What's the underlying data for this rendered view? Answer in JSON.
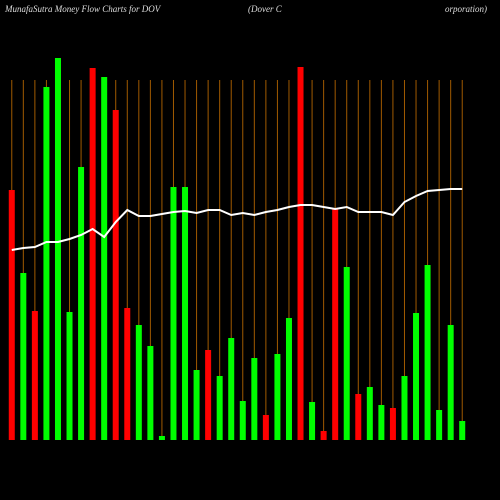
{
  "chart_data": {
    "type": "bar",
    "title": "MunafaSutra  Money Flow  Charts for DOV",
    "subtitle_left": "(Dover C",
    "subtitle_right": "orporation)",
    "categories": [
      null,
      null,
      null,
      null,
      null,
      null,
      null,
      null,
      null,
      null,
      null,
      null,
      null,
      null,
      null,
      null,
      null,
      null,
      null,
      null,
      null,
      null,
      null,
      null,
      null,
      null,
      null,
      null,
      null,
      null,
      null,
      null,
      null,
      null,
      null,
      null,
      null,
      null,
      null,
      null
    ],
    "values": [
      250,
      167,
      129,
      353,
      382,
      128,
      273,
      372,
      363,
      330,
      132,
      115,
      94,
      4,
      253,
      253,
      70,
      90,
      64,
      102,
      39,
      82,
      25,
      86,
      122,
      373,
      38,
      9,
      232,
      173,
      46,
      53,
      35,
      32,
      64,
      127,
      175,
      30,
      115,
      19
    ],
    "colors": [
      "#ff0000",
      "#00ff00",
      "#ff0000",
      "#00ff00",
      "#00ff00",
      "#00ff00",
      "#00ff00",
      "#ff0000",
      "#00ff00",
      "#ff0000",
      "#ff0000",
      "#00ff00",
      "#00ff00",
      "#00ff00",
      "#00ff00",
      "#00ff00",
      "#00ff00",
      "#ff0000",
      "#00ff00",
      "#00ff00",
      "#00ff00",
      "#00ff00",
      "#ff0000",
      "#00ff00",
      "#00ff00",
      "#ff0000",
      "#00ff00",
      "#ff0000",
      "#ff0000",
      "#00ff00",
      "#ff0000",
      "#00ff00",
      "#00ff00",
      "#ff0000",
      "#00ff00",
      "#00ff00",
      "#00ff00",
      "#00ff00",
      "#00ff00",
      "#00ff00"
    ],
    "line_values": [
      190,
      192,
      193,
      198,
      198,
      201,
      205,
      211,
      203,
      218,
      230,
      224,
      224,
      226,
      228,
      229,
      227,
      230,
      230,
      225,
      227,
      225,
      228,
      230,
      233,
      235,
      235,
      233,
      231,
      233,
      228,
      228,
      228,
      225,
      238,
      244,
      249,
      250,
      251,
      251
    ],
    "line_color": "#ffffff",
    "ylim": [
      0,
      390
    ]
  }
}
